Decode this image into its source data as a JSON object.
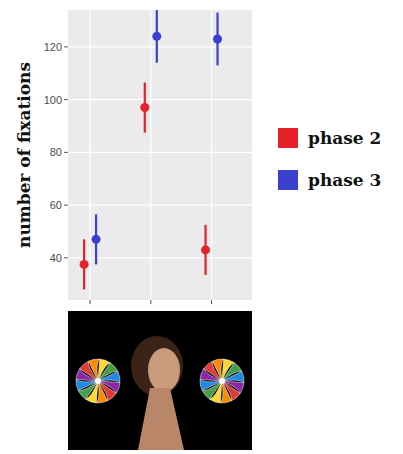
{
  "chart_data": {
    "type": "point",
    "y_label": "number of fixations",
    "categories": [
      null,
      null,
      null
    ],
    "series": [
      {
        "name": "phase 2",
        "color": "#e8202a",
        "values": [
          37.5,
          97,
          43
        ],
        "errors": [
          9.5,
          9.5,
          9.5
        ]
      },
      {
        "name": "phase 3",
        "color": "#3a3fd0",
        "values": [
          47,
          124,
          123
        ],
        "errors": [
          9.5,
          10,
          10
        ]
      }
    ],
    "ylim": [
      24,
      134
    ],
    "yticks": [
      40,
      60,
      80,
      100,
      120
    ],
    "grid": true,
    "legend": "right",
    "tick_labels": "y"
  }
}
